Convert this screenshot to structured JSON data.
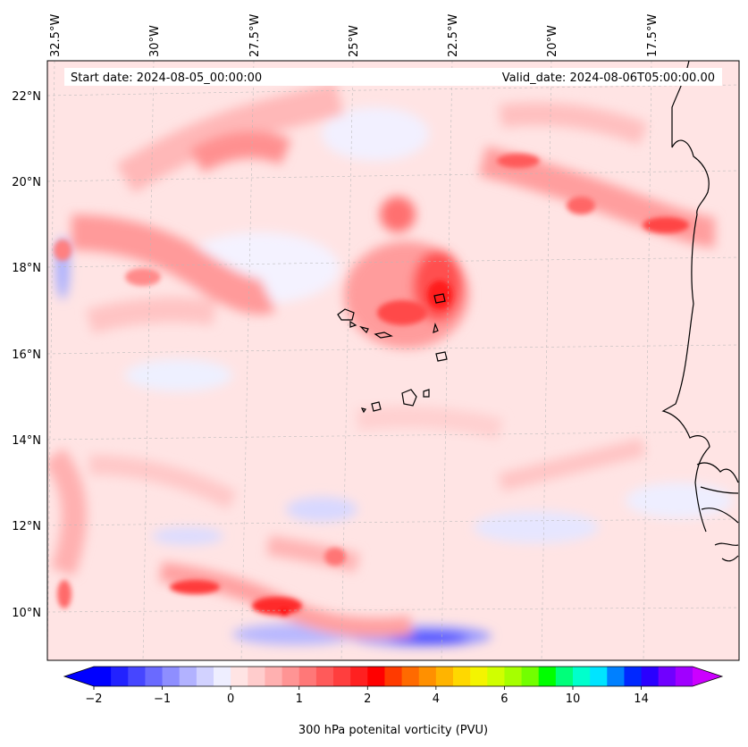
{
  "map": {
    "start_label": "Start date: 2024-08-05_00:00:00",
    "valid_label": "Valid_date: 2024-08-06T05:00:00.00",
    "lon_labels": [
      "32.5°W",
      "30°W",
      "27.5°W",
      "25°W",
      "22.5°W",
      "20°W",
      "17.5°W"
    ],
    "lat_labels": [
      "22°N",
      "20°N",
      "18°N",
      "16°N",
      "14°N",
      "12°N",
      "10°N"
    ]
  },
  "colorbar": {
    "title": "300 hPa potenital vorticity (PVU)",
    "tick_labels": [
      "−2",
      "−1",
      "0",
      "1",
      "2",
      "4",
      "6",
      "10",
      "14"
    ],
    "colors": [
      "#0000ff",
      "#2222ff",
      "#4646ff",
      "#6a6aff",
      "#8e8eff",
      "#b2b2ff",
      "#d2d2ff",
      "#eeeeff",
      "#ffe4e4",
      "#ffcccc",
      "#ffb0b0",
      "#ff9494",
      "#ff7878",
      "#ff5a5a",
      "#ff3e3e",
      "#ff2020",
      "#ff0000",
      "#ff3a00",
      "#ff6a00",
      "#ff9000",
      "#ffb400",
      "#ffd800",
      "#f4f400",
      "#d0ff00",
      "#a6ff00",
      "#72ff00",
      "#00ff00",
      "#00ff7a",
      "#00ffcc",
      "#00e4ff",
      "#0080ff",
      "#0028ff",
      "#2a00ff",
      "#7000ff",
      "#a000ff"
    ],
    "under_color": "#0000ff",
    "over_color": "#cc00ff"
  }
}
